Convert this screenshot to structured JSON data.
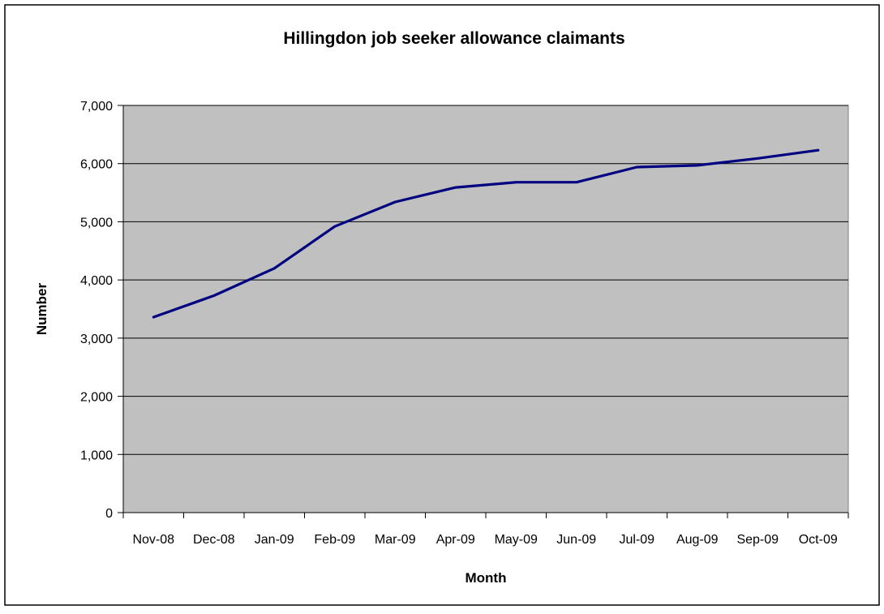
{
  "chart_data": {
    "type": "line",
    "title": "Hillingdon job seeker allowance claimants",
    "xlabel": "Month",
    "ylabel": "Number",
    "categories": [
      "Nov-08",
      "Dec-08",
      "Jan-09",
      "Feb-09",
      "Mar-09",
      "Apr-09",
      "May-09",
      "Jun-09",
      "Jul-09",
      "Aug-09",
      "Sep-09",
      "Oct-09"
    ],
    "y_ticks": [
      "0",
      "1,000",
      "2,000",
      "3,000",
      "4,000",
      "5,000",
      "6,000",
      "7,000"
    ],
    "ylim": [
      0,
      7000
    ],
    "grid": true,
    "legend": "none",
    "series": [
      {
        "values": [
          3360,
          3730,
          4200,
          4920,
          5340,
          5590,
          5680,
          5680,
          5940,
          5970,
          6090,
          6230
        ]
      }
    ],
    "colors": {
      "line": "#000080",
      "plot_background": "#c0c0c0",
      "gridline": "#000000",
      "frame": "#000000"
    }
  }
}
